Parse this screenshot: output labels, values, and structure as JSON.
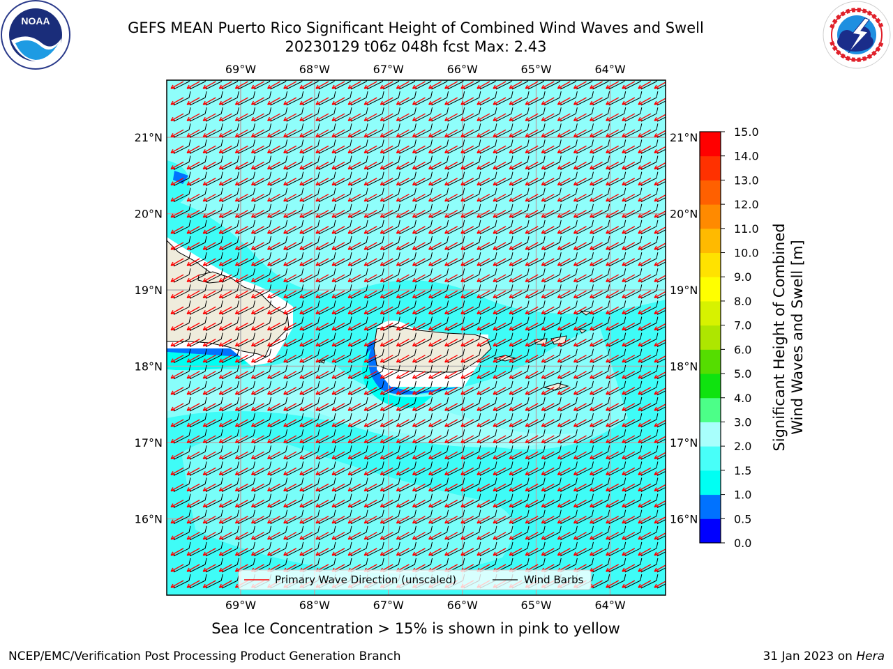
{
  "header": {
    "title_line1": "GEFS MEAN Puerto Rico Significant Height of Combined Wind Waves and Swell",
    "title_line2": "20230129 t06z 048h fcst   Max: 2.43"
  },
  "logos": {
    "left": {
      "icon": "noaa-logo",
      "text": "NOAA",
      "ring_text": "NATIONAL OCEANIC AND ATMOSPHERIC ADMINISTRATION · U.S. DEPARTMENT OF COMMERCE"
    },
    "right": {
      "icon": "nws-logo",
      "ring_text": "NATIONAL WEATHER SERVICE"
    }
  },
  "map": {
    "lon_labels": [
      "69°W",
      "68°W",
      "67°W",
      "66°W",
      "65°W",
      "64°W"
    ],
    "lat_labels": [
      "21°N",
      "20°N",
      "19°N",
      "18°N",
      "17°N",
      "16°N"
    ],
    "lon_values": [
      -69,
      -68,
      -67,
      -66,
      -65,
      -64
    ],
    "lat_values": [
      21,
      20,
      19,
      18,
      17,
      16
    ],
    "extent": {
      "lon_min": -70,
      "lon_max": -63.25,
      "lat_min": 15,
      "lat_max": 21.75
    },
    "legend": {
      "wave_label": "Primary Wave Direction (unscaled)",
      "barb_label": "Wind Barbs"
    },
    "colors": {
      "wave_arrow": "#ff0000",
      "barb": "#000000",
      "land": "#efecdc",
      "grid": "#b0b0b0"
    }
  },
  "colorbar": {
    "label_line1": "Significant Height of Combined",
    "label_line2": "Wind Waves and Swell [m]",
    "ticks": [
      "0.0",
      "0.5",
      "1.0",
      "1.5",
      "2.0",
      "3.0",
      "4.0",
      "5.0",
      "6.0",
      "7.0",
      "8.0",
      "9.0",
      "10.0",
      "11.0",
      "12.0",
      "13.0",
      "14.0",
      "15.0"
    ],
    "colors": [
      "#0000ff",
      "#0072ff",
      "#00fff3",
      "#48fff9",
      "#a8fffc",
      "#4cff88",
      "#0fe30f",
      "#55dd00",
      "#aee600",
      "#d7f200",
      "#ffff00",
      "#ffe200",
      "#ffba00",
      "#ff8a00",
      "#ff6000",
      "#ff3100",
      "#ff0000"
    ]
  },
  "caption": "Sea Ice Concentration > 15% is shown in pink to yellow",
  "footer": {
    "left": "NCEP/EMC/Verification Post Processing Product Generation Branch",
    "right_prefix": "31 Jan 2023 on ",
    "right_host": "Hera"
  }
}
